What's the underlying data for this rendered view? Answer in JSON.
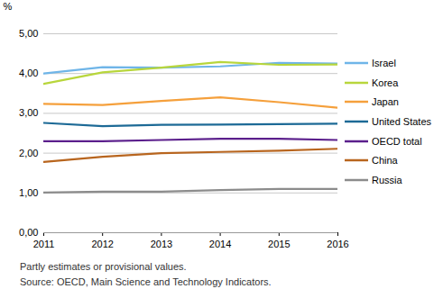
{
  "chart_data": {
    "type": "line",
    "ylabel": "%",
    "x": [
      2011,
      2012,
      2013,
      2014,
      2015,
      2016
    ],
    "xlim": [
      2011,
      2016
    ],
    "xticks": [
      2011,
      2012,
      2013,
      2014,
      2015,
      2016
    ],
    "ylim": [
      0,
      5
    ],
    "yticks": [
      {
        "value": 0,
        "label": "0,00"
      },
      {
        "value": 1,
        "label": "1,00"
      },
      {
        "value": 2,
        "label": "2,00"
      },
      {
        "value": 3,
        "label": "3,00"
      },
      {
        "value": 4,
        "label": "4,00"
      },
      {
        "value": 5,
        "label": "5,00"
      }
    ],
    "grid": true,
    "legend": "right",
    "series": [
      {
        "name": "Israel",
        "color": "#6fb5e8",
        "values": [
          4.0,
          4.16,
          4.15,
          4.18,
          4.27,
          4.25
        ]
      },
      {
        "name": "Korea",
        "color": "#b8d63c",
        "values": [
          3.74,
          4.03,
          4.15,
          4.29,
          4.22,
          4.23
        ]
      },
      {
        "name": "Japan",
        "color": "#f5a03c",
        "values": [
          3.24,
          3.21,
          3.31,
          3.4,
          3.28,
          3.14
        ]
      },
      {
        "name": "United States",
        "color": "#1d6a96",
        "values": [
          2.76,
          2.68,
          2.71,
          2.72,
          2.73,
          2.74
        ]
      },
      {
        "name": "OECD total",
        "color": "#5b1f8c",
        "values": [
          2.3,
          2.3,
          2.33,
          2.36,
          2.36,
          2.33
        ]
      },
      {
        "name": "China",
        "color": "#b8651e",
        "values": [
          1.78,
          1.91,
          2.0,
          2.03,
          2.06,
          2.11
        ]
      },
      {
        "name": "Russia",
        "color": "#8c8c8c",
        "values": [
          1.01,
          1.03,
          1.03,
          1.07,
          1.1,
          1.1
        ]
      }
    ],
    "notes": [
      "Partly estimates or provisional values.",
      "Source: OECD, Main Science and Technology Indicators."
    ]
  }
}
